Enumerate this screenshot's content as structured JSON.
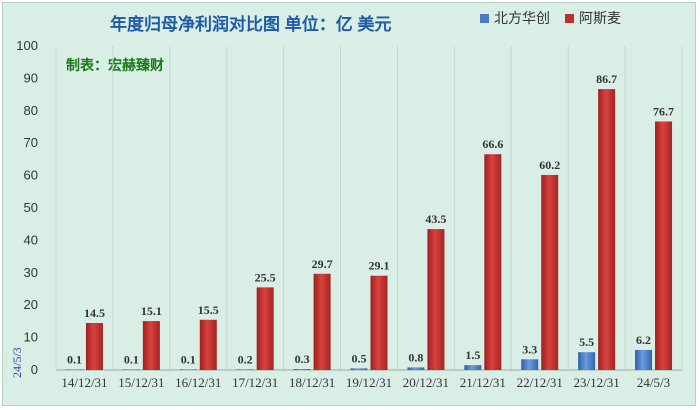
{
  "chart_data": {
    "type": "bar",
    "title": "年度归母净利润对比图   单位：亿 美元",
    "note": "制表：宏赫臻财",
    "side_label": "24/5/3",
    "categories": [
      "14/12/31",
      "15/12/31",
      "16/12/31",
      "17/12/31",
      "18/12/31",
      "19/12/31",
      "20/12/31",
      "21/12/31",
      "22/12/31",
      "23/12/31",
      "24/5/3"
    ],
    "series": [
      {
        "name": "北方华创",
        "color": "#4a7cc4",
        "values": [
          0.1,
          0.1,
          0.1,
          0.2,
          0.3,
          0.5,
          0.8,
          1.5,
          3.3,
          5.5,
          6.2
        ]
      },
      {
        "name": "阿斯麦",
        "color": "#c0302e",
        "values": [
          14.5,
          15.1,
          15.5,
          25.5,
          29.7,
          29.1,
          43.5,
          66.6,
          60.2,
          86.7,
          76.7
        ]
      }
    ],
    "ylim": [
      0,
      100
    ],
    "yticks": [
      0,
      10,
      20,
      30,
      40,
      50,
      60,
      70,
      80,
      90,
      100
    ],
    "grid": "vertical",
    "legend_position": "top-right",
    "xlabel": "",
    "ylabel": ""
  }
}
